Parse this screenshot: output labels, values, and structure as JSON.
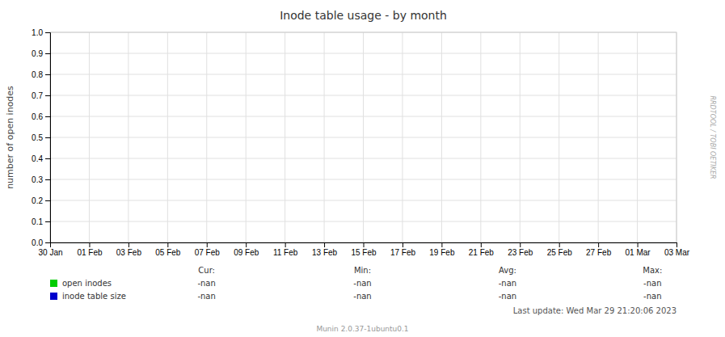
{
  "chart_data": {
    "type": "line",
    "title": "Inode table usage - by month",
    "y_label": "number of open inodes",
    "categories": [
      "30 Jan",
      "01 Feb",
      "03 Feb",
      "05 Feb",
      "07 Feb",
      "09 Feb",
      "11 Feb",
      "13 Feb",
      "15 Feb",
      "17 Feb",
      "19 Feb",
      "21 Feb",
      "23 Feb",
      "25 Feb",
      "27 Feb",
      "01 Mar",
      "03 Mar"
    ],
    "series": [
      {
        "name": "open inodes",
        "color": "#00cc00",
        "values": [
          null,
          null,
          null,
          null,
          null,
          null,
          null,
          null,
          null,
          null,
          null,
          null,
          null,
          null,
          null,
          null,
          null
        ],
        "stats": [
          "-nan",
          "-nan",
          "-nan",
          "-nan"
        ]
      },
      {
        "name": "inode table size",
        "color": "#0000cc",
        "values": [
          null,
          null,
          null,
          null,
          null,
          null,
          null,
          null,
          null,
          null,
          null,
          null,
          null,
          null,
          null,
          null,
          null
        ],
        "stats": [
          "-nan",
          "-nan",
          "-nan",
          "-nan"
        ]
      }
    ],
    "stats_labels": [
      "Cur:",
      "Min:",
      "Avg:",
      "Max:"
    ],
    "ylim": [
      0.0,
      1.0
    ],
    "yticks": [
      {
        "value": 0.0,
        "label": "0.0"
      },
      0.1,
      0.2,
      0.3,
      0.4,
      0.5,
      0.6,
      0.7,
      0.8,
      0.9,
      {
        "value": 1.0,
        "label": "1.0"
      }
    ],
    "grid": true,
    "last_update": "Last update: Wed Mar 29 21:20:06 2023",
    "footer": "Munin 2.0.37-1ubuntu0.1",
    "watermark": "RRDTOOL / TOBI OETIKER"
  }
}
